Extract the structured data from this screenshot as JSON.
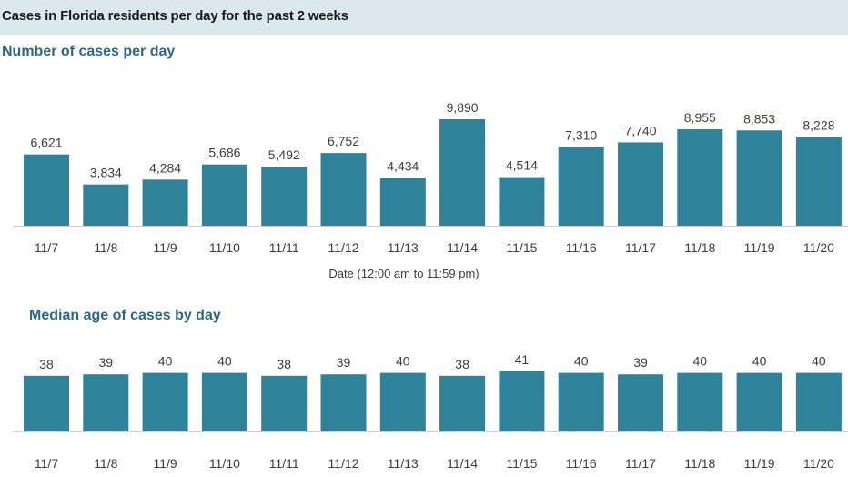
{
  "header": {
    "title": "Cases in Florida residents per day for the past 2 weeks"
  },
  "colors": {
    "bar": "#2e8299",
    "banner": "#dbe9ef",
    "section_title": "#2b6a85"
  },
  "chart_data": [
    {
      "type": "bar",
      "title": "Number of cases per day",
      "xlabel": "Date (12:00 am to 11:59 pm)",
      "ylabel": "",
      "categories": [
        "11/7",
        "11/8",
        "11/9",
        "11/10",
        "11/11",
        "11/12",
        "11/13",
        "11/14",
        "11/15",
        "11/16",
        "11/17",
        "11/18",
        "11/19",
        "11/20"
      ],
      "values": [
        6621,
        3834,
        4284,
        5686,
        5492,
        6752,
        4434,
        9890,
        4514,
        7310,
        7740,
        8955,
        8853,
        8228
      ],
      "value_labels": [
        "6,621",
        "3,834",
        "4,284",
        "5,686",
        "5,492",
        "6,752",
        "4,434",
        "9,890",
        "4,514",
        "7,310",
        "7,740",
        "8,955",
        "8,853",
        "8,228"
      ],
      "ylim": [
        0,
        9890
      ],
      "grid": false
    },
    {
      "type": "bar",
      "title": "Median age of cases by day",
      "xlabel": "",
      "ylabel": "",
      "categories": [
        "11/7",
        "11/8",
        "11/9",
        "11/10",
        "11/11",
        "11/12",
        "11/13",
        "11/14",
        "11/15",
        "11/16",
        "11/17",
        "11/18",
        "11/19",
        "11/20"
      ],
      "values": [
        38,
        39,
        40,
        40,
        38,
        39,
        40,
        38,
        41,
        40,
        39,
        40,
        40,
        40
      ],
      "value_labels": [
        "38",
        "39",
        "40",
        "40",
        "38",
        "39",
        "40",
        "38",
        "41",
        "40",
        "39",
        "40",
        "40",
        "40"
      ],
      "ylim": [
        0,
        41
      ],
      "grid": false
    }
  ]
}
